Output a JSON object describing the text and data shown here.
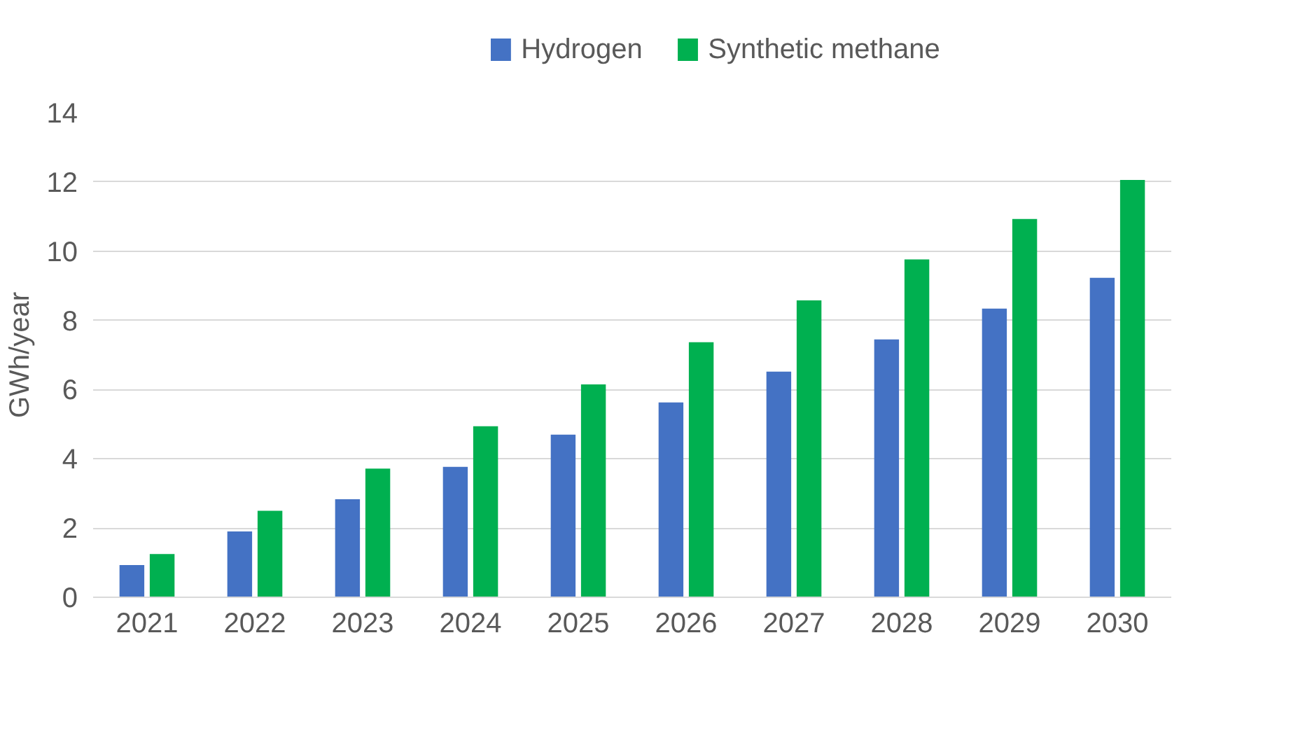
{
  "chart_data": {
    "type": "bar",
    "ylabel": "GWh/year",
    "categories": [
      "2021",
      "2022",
      "2023",
      "2024",
      "2025",
      "2026",
      "2027",
      "2028",
      "2029",
      "2030"
    ],
    "series": [
      {
        "name": "Hydrogen",
        "color": "#4472c4",
        "values": [
          0.93,
          1.9,
          2.83,
          3.77,
          4.7,
          5.63,
          6.52,
          7.45,
          8.34,
          9.23
        ]
      },
      {
        "name": "Synthetic methane",
        "color": "#00b050",
        "values": [
          1.25,
          2.5,
          3.72,
          4.94,
          6.15,
          7.37,
          8.58,
          9.76,
          10.93,
          12.06
        ]
      }
    ],
    "ylim": [
      0,
      14
    ],
    "yticks": [
      0,
      2,
      4,
      6,
      8,
      10,
      12,
      14
    ],
    "grid": "y",
    "legend": "top"
  }
}
